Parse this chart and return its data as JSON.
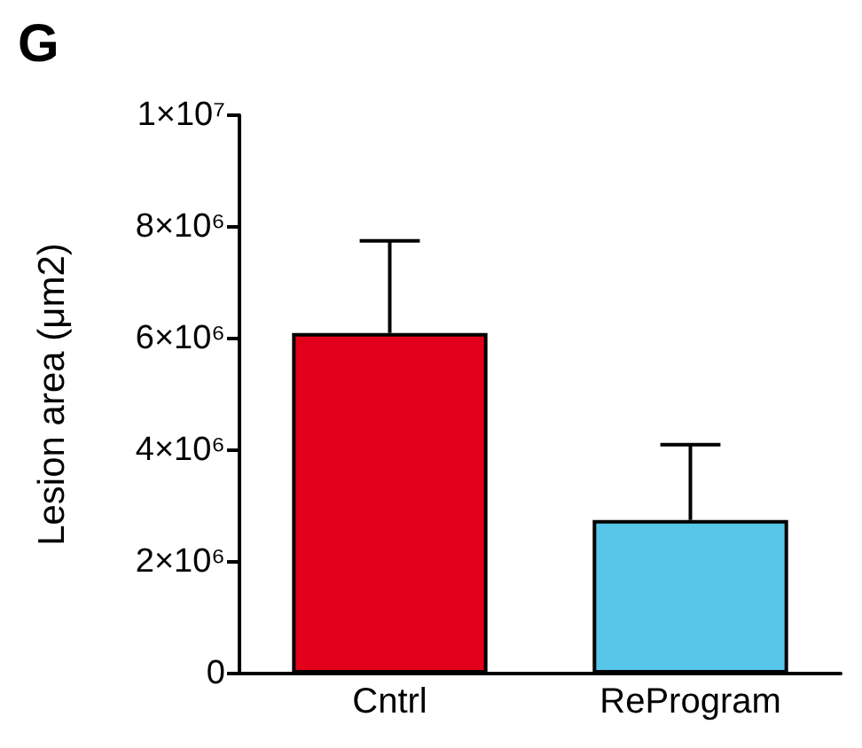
{
  "chart_data": {
    "type": "bar",
    "ylabel": "Lesion area (μm2)",
    "annotations": [
      "G"
    ],
    "categories": [
      "Cntrl",
      "ReProgram"
    ],
    "values": [
      6100000,
      2750000
    ],
    "colors": [
      "#e2001a",
      "#56c5e8"
    ],
    "errors": [
      [
        6100000,
        7750000
      ],
      [
        2750000,
        4100000
      ]
    ],
    "ylim": [
      0,
      10000000
    ],
    "yticks": [
      {
        "value": 0,
        "label": "0"
      },
      {
        "value": 2000000,
        "label": "2×10⁶"
      },
      {
        "value": 4000000,
        "label": "4×10⁶"
      },
      {
        "value": 6000000,
        "label": "6×10⁶"
      },
      {
        "value": 8000000,
        "label": "8×10⁶"
      },
      {
        "value": 10000000,
        "label": "1×10⁷"
      }
    ],
    "grid": false
  }
}
